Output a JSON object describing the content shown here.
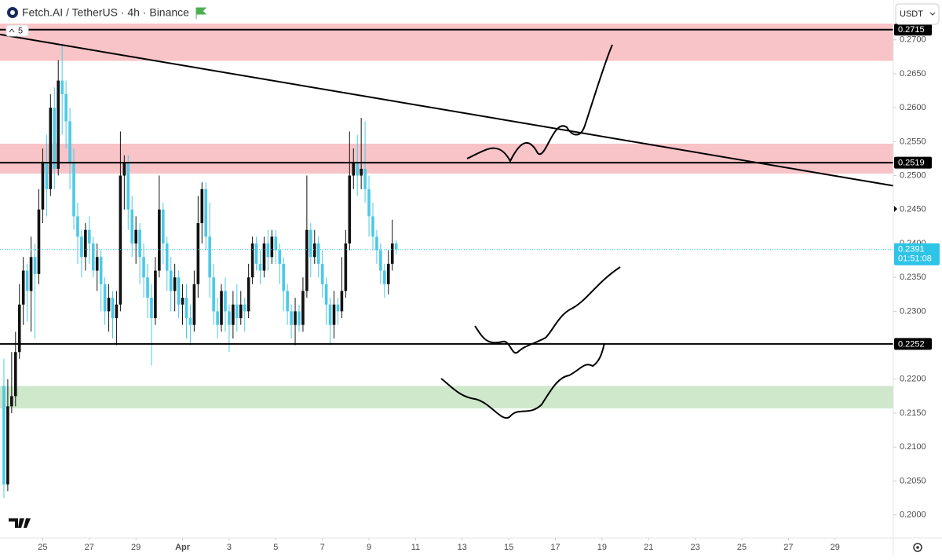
{
  "chart_data": {
    "type": "candlestick",
    "title": "Fetch.AI / TetherUS · 4h · Binance",
    "badge": "5",
    "currency": "USDT",
    "up_color": "#111111",
    "down_color": "#4cc9e8",
    "ylim": [
      0.1966,
      0.2724
    ],
    "xlim": [
      -1,
      229
    ],
    "yticks": [
      {
        "value": 0.2,
        "label": "0.2000"
      },
      {
        "value": 0.205,
        "label": "0.2050"
      },
      {
        "value": 0.21,
        "label": "0.2100"
      },
      {
        "value": 0.215,
        "label": "0.2150"
      },
      {
        "value": 0.22,
        "label": "0.2200"
      },
      {
        "value": 0.225,
        "label": "0.2250"
      },
      {
        "value": 0.23,
        "label": "0.2300"
      },
      {
        "value": 0.235,
        "label": "0.2350"
      },
      {
        "value": 0.24,
        "label": "0.2400"
      },
      {
        "value": 0.245,
        "label": "0.2450"
      },
      {
        "value": 0.25,
        "label": "0.2500"
      },
      {
        "value": 0.255,
        "label": "0.2550"
      },
      {
        "value": 0.26,
        "label": "0.2600"
      },
      {
        "value": 0.265,
        "label": "0.2650"
      },
      {
        "value": 0.27,
        "label": "0.2700"
      }
    ],
    "xticks": [
      {
        "value": 10,
        "label": "25"
      },
      {
        "value": 22,
        "label": "27"
      },
      {
        "value": 34,
        "label": "29"
      },
      {
        "value": 46,
        "label": "Apr"
      },
      {
        "value": 58,
        "label": "3"
      },
      {
        "value": 70,
        "label": "5"
      },
      {
        "value": 82,
        "label": "7"
      },
      {
        "value": 94,
        "label": "9"
      },
      {
        "value": 106,
        "label": "11"
      },
      {
        "value": 118,
        "label": "13"
      },
      {
        "value": 130,
        "label": "15"
      },
      {
        "value": 142,
        "label": "17"
      },
      {
        "value": 154,
        "label": "19"
      },
      {
        "value": 166,
        "label": "21"
      },
      {
        "value": 178,
        "label": "23"
      },
      {
        "value": 190,
        "label": "25"
      },
      {
        "value": 202,
        "label": "27"
      },
      {
        "value": 214,
        "label": "29"
      }
    ],
    "zones": [
      {
        "from": 0.2669,
        "to": 0.2724,
        "color": "#f9c4c7"
      },
      {
        "from": 0.2503,
        "to": 0.2547,
        "color": "#f9c4c7"
      },
      {
        "from": 0.2157,
        "to": 0.219,
        "color": "#cfe8cb"
      }
    ],
    "levels": [
      {
        "value": 0.2715,
        "label": "0.2715"
      },
      {
        "value": 0.2519,
        "label": "0.2519"
      },
      {
        "value": 0.2252,
        "label": "0.2252"
      }
    ],
    "trendline": {
      "x": [
        -1,
        229
      ],
      "y": [
        0.2708,
        0.2485
      ]
    },
    "last_price": {
      "value": 0.2391,
      "label": "0.2391",
      "countdown": "01:51:08",
      "color": "#2ec4e8"
    },
    "ohlc": [
      [
        0.219,
        0.223,
        0.2025,
        0.2045
      ],
      [
        0.2045,
        0.22,
        0.2035,
        0.216
      ],
      [
        0.216,
        0.224,
        0.215,
        0.2175
      ],
      [
        0.2175,
        0.227,
        0.216,
        0.224
      ],
      [
        0.224,
        0.234,
        0.223,
        0.231
      ],
      [
        0.231,
        0.238,
        0.228,
        0.236
      ],
      [
        0.236,
        0.237,
        0.2285,
        0.233
      ],
      [
        0.233,
        0.241,
        0.227,
        0.238
      ],
      [
        0.238,
        0.24,
        0.226,
        0.2355
      ],
      [
        0.2355,
        0.248,
        0.234,
        0.245
      ],
      [
        0.245,
        0.254,
        0.243,
        0.252
      ],
      [
        0.252,
        0.256,
        0.244,
        0.248
      ],
      [
        0.248,
        0.262,
        0.247,
        0.26
      ],
      [
        0.26,
        0.263,
        0.248,
        0.251
      ],
      [
        0.251,
        0.267,
        0.25,
        0.264
      ],
      [
        0.264,
        0.2692,
        0.256,
        0.262
      ],
      [
        0.262,
        0.264,
        0.254,
        0.258
      ],
      [
        0.258,
        0.26,
        0.248,
        0.252
      ],
      [
        0.252,
        0.254,
        0.242,
        0.244
      ],
      [
        0.244,
        0.246,
        0.237,
        0.241
      ],
      [
        0.241,
        0.242,
        0.235,
        0.238
      ],
      [
        0.238,
        0.243,
        0.236,
        0.242
      ],
      [
        0.242,
        0.244,
        0.237,
        0.24
      ],
      [
        0.24,
        0.241,
        0.235,
        0.236
      ],
      [
        0.236,
        0.24,
        0.233,
        0.238
      ],
      [
        0.238,
        0.239,
        0.23,
        0.234
      ],
      [
        0.234,
        0.235,
        0.228,
        0.23
      ],
      [
        0.23,
        0.234,
        0.227,
        0.232
      ],
      [
        0.232,
        0.233,
        0.226,
        0.229
      ],
      [
        0.229,
        0.233,
        0.225,
        0.231
      ],
      [
        0.231,
        0.2565,
        0.23,
        0.25
      ],
      [
        0.25,
        0.253,
        0.245,
        0.252
      ],
      [
        0.252,
        0.253,
        0.242,
        0.245
      ],
      [
        0.245,
        0.247,
        0.238,
        0.24
      ],
      [
        0.24,
        0.244,
        0.237,
        0.242
      ],
      [
        0.242,
        0.243,
        0.234,
        0.238
      ],
      [
        0.238,
        0.24,
        0.232,
        0.235
      ],
      [
        0.235,
        0.237,
        0.229,
        0.232
      ],
      [
        0.232,
        0.234,
        0.222,
        0.229
      ],
      [
        0.229,
        0.238,
        0.228,
        0.236
      ],
      [
        0.236,
        0.25,
        0.235,
        0.245
      ],
      [
        0.245,
        0.246,
        0.237,
        0.24
      ],
      [
        0.24,
        0.241,
        0.233,
        0.236
      ],
      [
        0.236,
        0.238,
        0.23,
        0.233
      ],
      [
        0.233,
        0.237,
        0.23,
        0.235
      ],
      [
        0.235,
        0.236,
        0.229,
        0.231
      ],
      [
        0.231,
        0.234,
        0.228,
        0.232
      ],
      [
        0.232,
        0.234,
        0.226,
        0.229
      ],
      [
        0.229,
        0.231,
        0.225,
        0.228
      ],
      [
        0.228,
        0.236,
        0.227,
        0.234
      ],
      [
        0.234,
        0.247,
        0.232,
        0.243
      ],
      [
        0.243,
        0.249,
        0.24,
        0.248
      ],
      [
        0.248,
        0.249,
        0.239,
        0.241
      ],
      [
        0.241,
        0.246,
        0.232,
        0.235
      ],
      [
        0.235,
        0.237,
        0.228,
        0.23
      ],
      [
        0.23,
        0.232,
        0.226,
        0.228
      ],
      [
        0.228,
        0.234,
        0.227,
        0.233
      ],
      [
        0.233,
        0.235,
        0.227,
        0.23
      ],
      [
        0.23,
        0.231,
        0.224,
        0.228
      ],
      [
        0.228,
        0.233,
        0.226,
        0.231
      ],
      [
        0.231,
        0.234,
        0.227,
        0.229
      ],
      [
        0.229,
        0.233,
        0.228,
        0.231
      ],
      [
        0.231,
        0.232,
        0.227,
        0.23
      ],
      [
        0.23,
        0.237,
        0.229,
        0.235
      ],
      [
        0.235,
        0.241,
        0.234,
        0.24
      ],
      [
        0.24,
        0.241,
        0.236,
        0.237
      ],
      [
        0.237,
        0.239,
        0.234,
        0.236
      ],
      [
        0.236,
        0.241,
        0.235,
        0.24
      ],
      [
        0.24,
        0.242,
        0.236,
        0.238
      ],
      [
        0.238,
        0.242,
        0.237,
        0.241
      ],
      [
        0.241,
        0.242,
        0.237,
        0.239
      ],
      [
        0.239,
        0.24,
        0.234,
        0.237
      ],
      [
        0.237,
        0.238,
        0.23,
        0.233
      ],
      [
        0.233,
        0.234,
        0.228,
        0.23
      ],
      [
        0.23,
        0.231,
        0.226,
        0.228
      ],
      [
        0.228,
        0.232,
        0.225,
        0.23
      ],
      [
        0.23,
        0.231,
        0.227,
        0.228
      ],
      [
        0.228,
        0.235,
        0.227,
        0.233
      ],
      [
        0.233,
        0.25,
        0.232,
        0.242
      ],
      [
        0.242,
        0.243,
        0.235,
        0.238
      ],
      [
        0.238,
        0.242,
        0.237,
        0.24
      ],
      [
        0.24,
        0.241,
        0.235,
        0.237
      ],
      [
        0.237,
        0.239,
        0.232,
        0.234
      ],
      [
        0.234,
        0.235,
        0.228,
        0.231
      ],
      [
        0.231,
        0.232,
        0.225,
        0.228
      ],
      [
        0.228,
        0.233,
        0.226,
        0.231
      ],
      [
        0.231,
        0.232,
        0.228,
        0.23
      ],
      [
        0.23,
        0.238,
        0.229,
        0.233
      ],
      [
        0.233,
        0.242,
        0.232,
        0.24
      ],
      [
        0.24,
        0.2565,
        0.239,
        0.25
      ],
      [
        0.25,
        0.254,
        0.248,
        0.252
      ],
      [
        0.252,
        0.256,
        0.247,
        0.25
      ],
      [
        0.25,
        0.2585,
        0.248,
        0.251
      ],
      [
        0.251,
        0.258,
        0.246,
        0.248
      ],
      [
        0.248,
        0.25,
        0.241,
        0.244
      ],
      [
        0.244,
        0.246,
        0.239,
        0.241
      ],
      [
        0.241,
        0.242,
        0.237,
        0.239
      ],
      [
        0.239,
        0.24,
        0.234,
        0.236
      ],
      [
        0.236,
        0.237,
        0.232,
        0.234
      ],
      [
        0.234,
        0.239,
        0.2325,
        0.237
      ],
      [
        0.237,
        0.2435,
        0.236,
        0.24
      ],
      [
        0.24,
        0.2405,
        0.2385,
        0.2391
      ]
    ]
  }
}
